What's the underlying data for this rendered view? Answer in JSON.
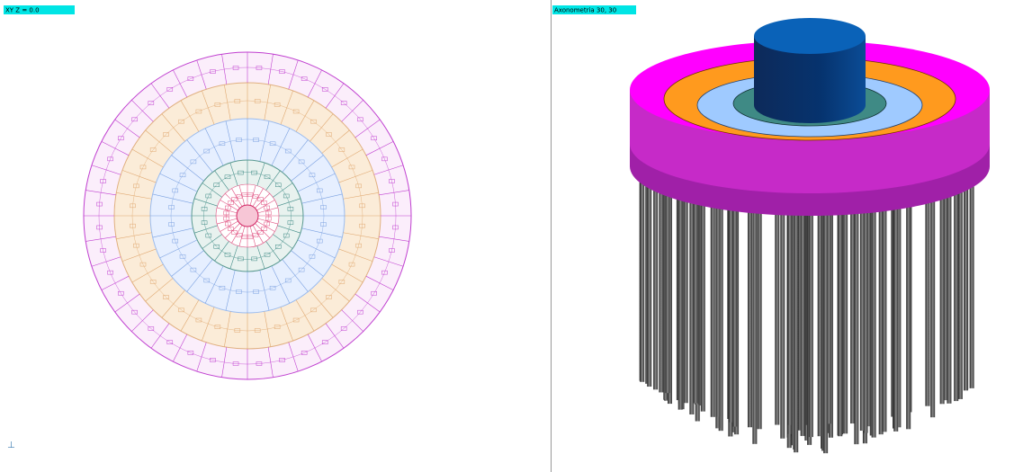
{
  "viewports": [
    {
      "label": "XY  Z = 0.0"
    },
    {
      "label": "Axonometria   30, 30"
    }
  ]
}
